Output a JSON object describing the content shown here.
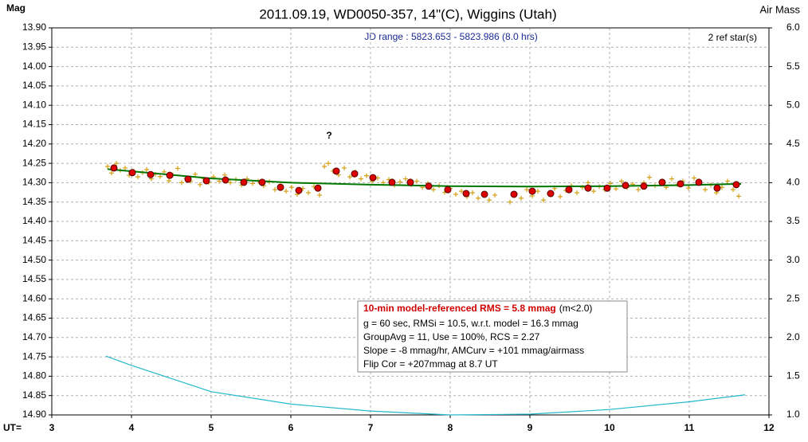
{
  "chart_data": {
    "type": "scatter",
    "title": "2011.09.19, WD0050-357, 14\"(C), Wiggins (Utah)",
    "subtitle": "JD range : 5823.653 - 5823.986 (8.0 hrs)",
    "y_label": "Mag",
    "y2_label": "Air Mass",
    "x_label": "UT=",
    "annotations": [
      "2 ref star(s)",
      "?"
    ],
    "info_box": {
      "headline": "10-min model-referenced RMS = 5.8 mmag",
      "headline_note": "(m<2.0)",
      "lines": [
        "g = 60 sec, RMSi = 10.5, w.r.t. model = 16.3 mmag",
        "GroupAvg = 11, Use = 100%, RCS = 2.27",
        "Slope = -8 mmag/hr, AMCurv = +101 mmag/airmass",
        "Flip Cor = +207mmag at 8.7 UT"
      ]
    },
    "grid": true,
    "y_inverted": true,
    "xlim": [
      3,
      12
    ],
    "xticks": [
      3,
      4,
      5,
      6,
      7,
      8,
      9,
      10,
      11,
      12
    ],
    "ylim": [
      13.9,
      14.9
    ],
    "yticks": [
      {
        "value": 13.9,
        "label": "13.90"
      },
      {
        "value": 13.95,
        "label": "13.95"
      },
      {
        "value": 14.0,
        "label": "14.00"
      },
      {
        "value": 14.05,
        "label": "14.05"
      },
      {
        "value": 14.1,
        "label": "14.10"
      },
      {
        "value": 14.15,
        "label": "14.15"
      },
      {
        "value": 14.2,
        "label": "14.20"
      },
      {
        "value": 14.25,
        "label": "14.25"
      },
      {
        "value": 14.3,
        "label": "14.30"
      },
      {
        "value": 14.35,
        "label": "14.35"
      },
      {
        "value": 14.4,
        "label": "14.40"
      },
      {
        "value": 14.45,
        "label": "14.45"
      },
      {
        "value": 14.5,
        "label": "14.50"
      },
      {
        "value": 14.55,
        "label": "14.55"
      },
      {
        "value": 14.6,
        "label": "14.60"
      },
      {
        "value": 14.65,
        "label": "14.65"
      },
      {
        "value": 14.7,
        "label": "14.70"
      },
      {
        "value": 14.75,
        "label": "14.75"
      },
      {
        "value": 14.8,
        "label": "14.80"
      },
      {
        "value": 14.85,
        "label": "14.85"
      },
      {
        "value": 14.9,
        "label": "14.90"
      }
    ],
    "y2lim": [
      1,
      6
    ],
    "y2ticks": [
      {
        "value": 1,
        "label": "1.0"
      },
      {
        "value": 1.5,
        "label": "1.5"
      },
      {
        "value": 2,
        "label": "2.0"
      },
      {
        "value": 2.5,
        "label": "2.5"
      },
      {
        "value": 3,
        "label": "3.0"
      },
      {
        "value": 3.5,
        "label": "3.5"
      },
      {
        "value": 4,
        "label": "4.0"
      },
      {
        "value": 4.5,
        "label": "4.5"
      },
      {
        "value": 5,
        "label": "5.0"
      },
      {
        "value": 5.5,
        "label": "5.5"
      },
      {
        "value": 6,
        "label": "6.0"
      }
    ],
    "series": [
      {
        "marker": "cross",
        "color": "#d4a017",
        "x": [
          3.7,
          3.75,
          3.81,
          3.86,
          3.92,
          3.97,
          4.03,
          4.08,
          4.14,
          4.19,
          4.25,
          4.3,
          4.36,
          4.41,
          4.47,
          4.52,
          4.58,
          4.63,
          4.69,
          4.74,
          4.8,
          4.86,
          4.91,
          4.97,
          5.03,
          5.1,
          5.17,
          5.24,
          5.31,
          5.38,
          5.45,
          5.52,
          5.59,
          5.66,
          5.73,
          5.8,
          5.87,
          5.94,
          6.01,
          6.08,
          6.15,
          6.22,
          6.29,
          6.36,
          6.42,
          6.47,
          6.53,
          6.6,
          6.67,
          6.74,
          6.81,
          6.88,
          6.95,
          7.02,
          7.09,
          7.16,
          7.23,
          7.3,
          7.37,
          7.44,
          7.51,
          7.58,
          7.65,
          7.72,
          7.79,
          7.86,
          7.93,
          8.0,
          8.07,
          8.14,
          8.21,
          8.28,
          8.35,
          8.42,
          8.49,
          8.56,
          8.75,
          8.82,
          8.89,
          8.96,
          9.03,
          9.1,
          9.17,
          9.24,
          9.31,
          9.38,
          9.45,
          9.52,
          9.59,
          9.66,
          9.73,
          9.8,
          9.87,
          9.94,
          10.01,
          10.08,
          10.15,
          10.22,
          10.29,
          10.36,
          10.43,
          10.5,
          10.57,
          10.64,
          10.71,
          10.78,
          10.85,
          10.92,
          10.99,
          11.06,
          11.13,
          11.2,
          11.27,
          11.34,
          11.41,
          11.48,
          11.55,
          11.62
        ],
        "values": [
          14.258,
          14.275,
          14.25,
          14.268,
          14.262,
          14.281,
          14.27,
          14.285,
          14.274,
          14.266,
          14.29,
          14.278,
          14.284,
          14.272,
          14.295,
          14.28,
          14.263,
          14.3,
          14.288,
          14.296,
          14.278,
          14.305,
          14.29,
          14.3,
          14.285,
          14.296,
          14.28,
          14.3,
          14.292,
          14.306,
          14.29,
          14.302,
          14.296,
          14.308,
          14.298,
          14.318,
          14.305,
          14.322,
          14.312,
          14.33,
          14.315,
          14.326,
          14.31,
          14.332,
          14.258,
          14.25,
          14.27,
          14.28,
          14.262,
          14.285,
          14.272,
          14.29,
          14.282,
          14.296,
          14.288,
          14.3,
          14.292,
          14.306,
          14.298,
          14.29,
          14.305,
          14.296,
          14.312,
          14.302,
          14.318,
          14.308,
          14.325,
          14.315,
          14.33,
          14.322,
          14.336,
          14.326,
          14.34,
          14.33,
          14.345,
          14.332,
          14.35,
          14.328,
          14.34,
          14.318,
          14.334,
          14.322,
          14.345,
          14.33,
          14.315,
          14.336,
          14.32,
          14.308,
          14.326,
          14.312,
          14.3,
          14.322,
          14.31,
          14.318,
          14.302,
          14.316,
          14.296,
          14.312,
          14.304,
          14.318,
          14.3,
          14.286,
          14.308,
          14.298,
          14.312,
          14.29,
          14.305,
          14.296,
          14.314,
          14.288,
          14.302,
          14.318,
          14.306,
          14.326,
          14.312,
          14.296,
          14.318,
          14.335
        ]
      },
      {
        "marker": "line",
        "color": "#007700",
        "x": [
          3.7,
          5,
          6,
          7,
          8,
          9,
          10,
          11,
          11.65
        ],
        "values": [
          14.265,
          14.289,
          14.3,
          14.305,
          14.309,
          14.31,
          14.309,
          14.306,
          14.303
        ]
      },
      {
        "marker": "dot",
        "color": "#dd0000",
        "x": [
          3.78,
          4.01,
          4.24,
          4.48,
          4.71,
          4.94,
          5.18,
          5.41,
          5.64,
          5.87,
          6.1,
          6.34,
          6.57,
          6.8,
          7.03,
          7.27,
          7.5,
          7.73,
          7.97,
          8.2,
          8.43,
          8.8,
          9.03,
          9.26,
          9.49,
          9.73,
          9.97,
          10.2,
          10.43,
          10.66,
          10.89,
          11.12,
          11.35,
          11.59
        ],
        "values": [
          14.262,
          14.274,
          14.279,
          14.281,
          14.291,
          14.295,
          14.293,
          14.299,
          14.299,
          14.312,
          14.32,
          14.314,
          14.27,
          14.277,
          14.287,
          14.299,
          14.299,
          14.309,
          14.318,
          14.328,
          14.33,
          14.33,
          14.322,
          14.328,
          14.318,
          14.314,
          14.314,
          14.307,
          14.309,
          14.299,
          14.303,
          14.299,
          14.314,
          14.305
        ]
      },
      {
        "marker": "line",
        "color": "#22b8cc",
        "axis": "y2",
        "x": [
          3.68,
          4,
          5,
          6,
          7,
          8,
          9,
          10,
          11,
          11.7
        ],
        "values": [
          1.76,
          1.64,
          1.3,
          1.14,
          1.05,
          1.0,
          1.01,
          1.07,
          1.17,
          1.26
        ]
      }
    ]
  }
}
